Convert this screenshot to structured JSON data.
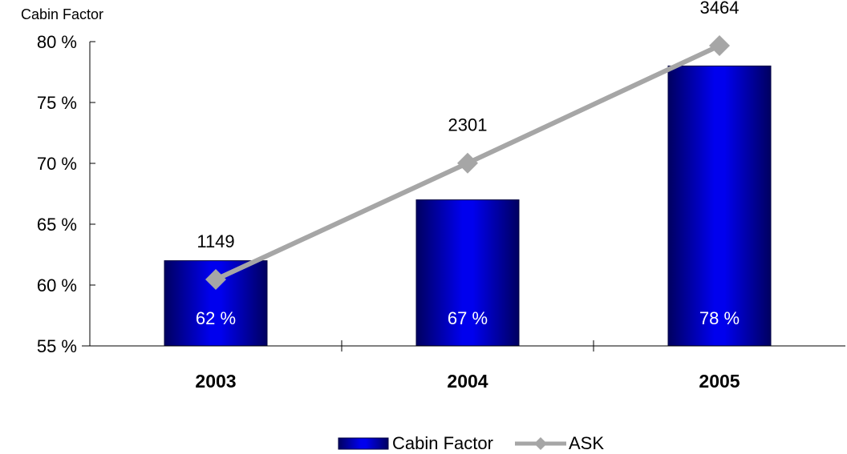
{
  "chart_data": {
    "type": "bar",
    "ylabel": "Cabin Factor",
    "categories": [
      "2003",
      "2004",
      "2005"
    ],
    "ylim": [
      55,
      80
    ],
    "yticks": [
      55,
      60,
      65,
      70,
      75,
      80
    ],
    "ytick_suffix": " %",
    "series": [
      {
        "name": "Cabin Factor",
        "type": "bar",
        "values": [
          62,
          67,
          78
        ],
        "data_labels": [
          "62 %",
          "67 %",
          "78 %"
        ],
        "color": "#0000cc"
      },
      {
        "name": "ASK",
        "type": "line",
        "values": [
          1149,
          2301,
          3464
        ],
        "data_labels": [
          "1149",
          "2301",
          "3464"
        ],
        "color": "#a6a6a6",
        "marker": "diamond"
      }
    ],
    "grid": false,
    "legend": "bottom-center"
  }
}
